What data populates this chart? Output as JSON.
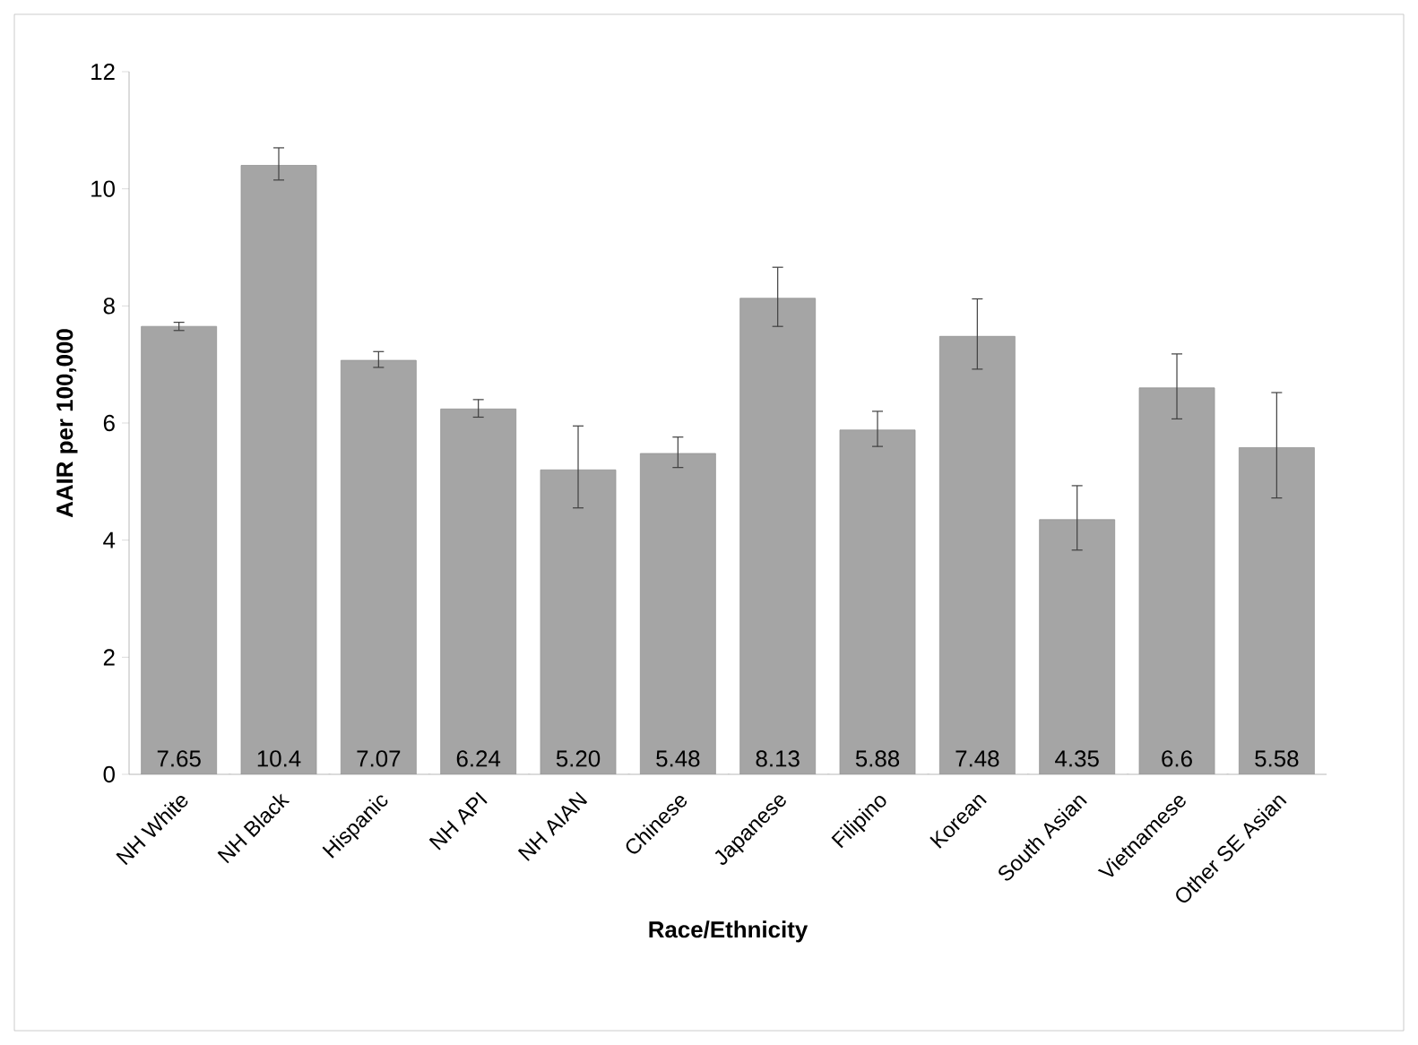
{
  "chart_data": {
    "type": "bar",
    "xlabel": "Race/Ethnicity",
    "ylabel": "AAIR per 100,000",
    "categories": [
      "NH White",
      "NH Black",
      "Hispanic",
      "NH API",
      "NH AIAN",
      "Chinese",
      "Japanese",
      "Filipino",
      "Korean",
      "South Asian",
      "Vietnamese",
      "Other SE Asian"
    ],
    "values": [
      7.65,
      10.4,
      7.07,
      6.24,
      5.2,
      5.48,
      8.13,
      5.88,
      7.48,
      4.35,
      6.6,
      5.58
    ],
    "value_labels": [
      "7.65",
      "10.4",
      "7.07",
      "6.24",
      "5.20",
      "5.48",
      "8.13",
      "5.88",
      "7.48",
      "4.35",
      "6.6",
      "5.58"
    ],
    "errors": [
      [
        7.58,
        7.72
      ],
      [
        10.15,
        10.7
      ],
      [
        6.95,
        7.22
      ],
      [
        6.1,
        6.4
      ],
      [
        4.55,
        5.95
      ],
      [
        5.24,
        5.76
      ],
      [
        7.65,
        8.66
      ],
      [
        5.6,
        6.2
      ],
      [
        6.92,
        8.12
      ],
      [
        3.83,
        4.93
      ],
      [
        6.07,
        7.18
      ],
      [
        4.72,
        6.52
      ]
    ],
    "color": "#a5a5a5",
    "ylim": [
      0,
      12
    ],
    "yticks": [
      0,
      2,
      4,
      6,
      8,
      10,
      12
    ]
  }
}
